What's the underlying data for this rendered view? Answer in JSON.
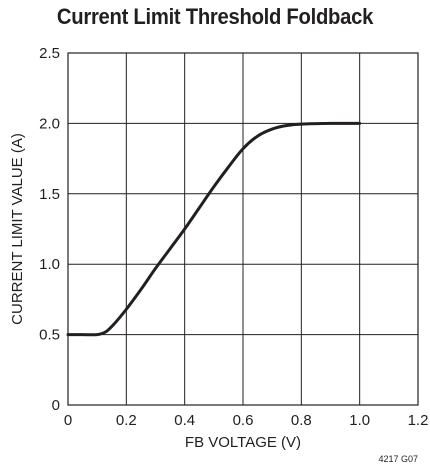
{
  "chart_data": {
    "type": "line",
    "title": "Current Limit Threshold Foldback",
    "xlabel": "FB VOLTAGE (V)",
    "ylabel": "CURRENT LIMIT VALUE (A)",
    "xlim": [
      0,
      1.2
    ],
    "ylim": [
      0,
      2.5
    ],
    "xticks": [
      "0",
      "0.2",
      "0.4",
      "0.6",
      "0.8",
      "1.0",
      "1.2"
    ],
    "yticks": [
      "0",
      "0.5",
      "1.0",
      "1.5",
      "2.0",
      "2.5"
    ],
    "grid": true,
    "series": [
      {
        "values": [
          [
            0.0,
            0.5
          ],
          [
            0.05,
            0.5
          ],
          [
            0.1,
            0.5
          ],
          [
            0.13,
            0.52
          ],
          [
            0.16,
            0.58
          ],
          [
            0.2,
            0.68
          ],
          [
            0.25,
            0.82
          ],
          [
            0.3,
            0.97
          ],
          [
            0.35,
            1.11
          ],
          [
            0.4,
            1.25
          ],
          [
            0.45,
            1.4
          ],
          [
            0.5,
            1.55
          ],
          [
            0.55,
            1.69
          ],
          [
            0.6,
            1.82
          ],
          [
            0.65,
            1.91
          ],
          [
            0.7,
            1.96
          ],
          [
            0.75,
            1.985
          ],
          [
            0.8,
            1.995
          ],
          [
            0.9,
            2.0
          ],
          [
            1.0,
            2.0
          ]
        ]
      }
    ],
    "figure_code": "4217 G07"
  },
  "colors": {
    "line": "#231f20",
    "grid": "#231f20",
    "text": "#231f20"
  }
}
